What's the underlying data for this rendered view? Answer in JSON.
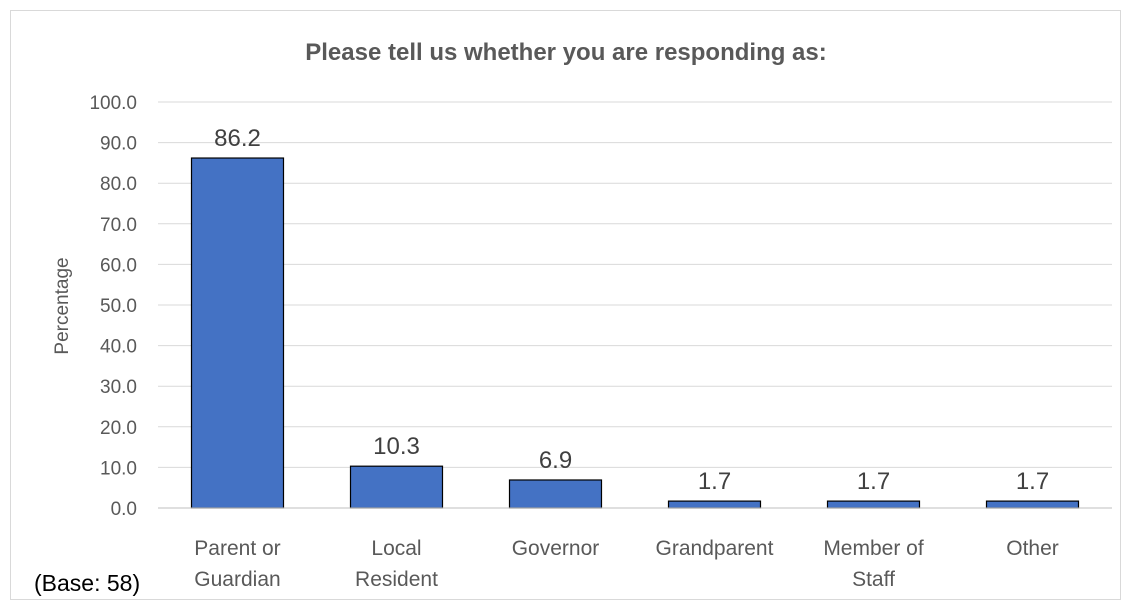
{
  "chart_data": {
    "type": "bar",
    "title": "Please tell us whether you are responding as:",
    "ylabel": "Percentage",
    "xlabel": "",
    "ylim": [
      0,
      100
    ],
    "yticks": [
      "0.0",
      "10.0",
      "20.0",
      "30.0",
      "40.0",
      "50.0",
      "60.0",
      "70.0",
      "80.0",
      "90.0",
      "100.0"
    ],
    "grid": true,
    "categories": [
      [
        "Parent or",
        "Guardian"
      ],
      [
        "Local",
        "Resident"
      ],
      [
        "Governor"
      ],
      [
        "Grandparent"
      ],
      [
        "Member of",
        "Staff"
      ],
      [
        "Other"
      ]
    ],
    "values": [
      86.2,
      10.3,
      6.9,
      1.7,
      1.7,
      1.7
    ],
    "value_labels": [
      "86.2",
      "10.3",
      "6.9",
      "1.7",
      "1.7",
      "1.7"
    ],
    "bar_color": "#4472c4",
    "note": "(Base: 58)"
  }
}
